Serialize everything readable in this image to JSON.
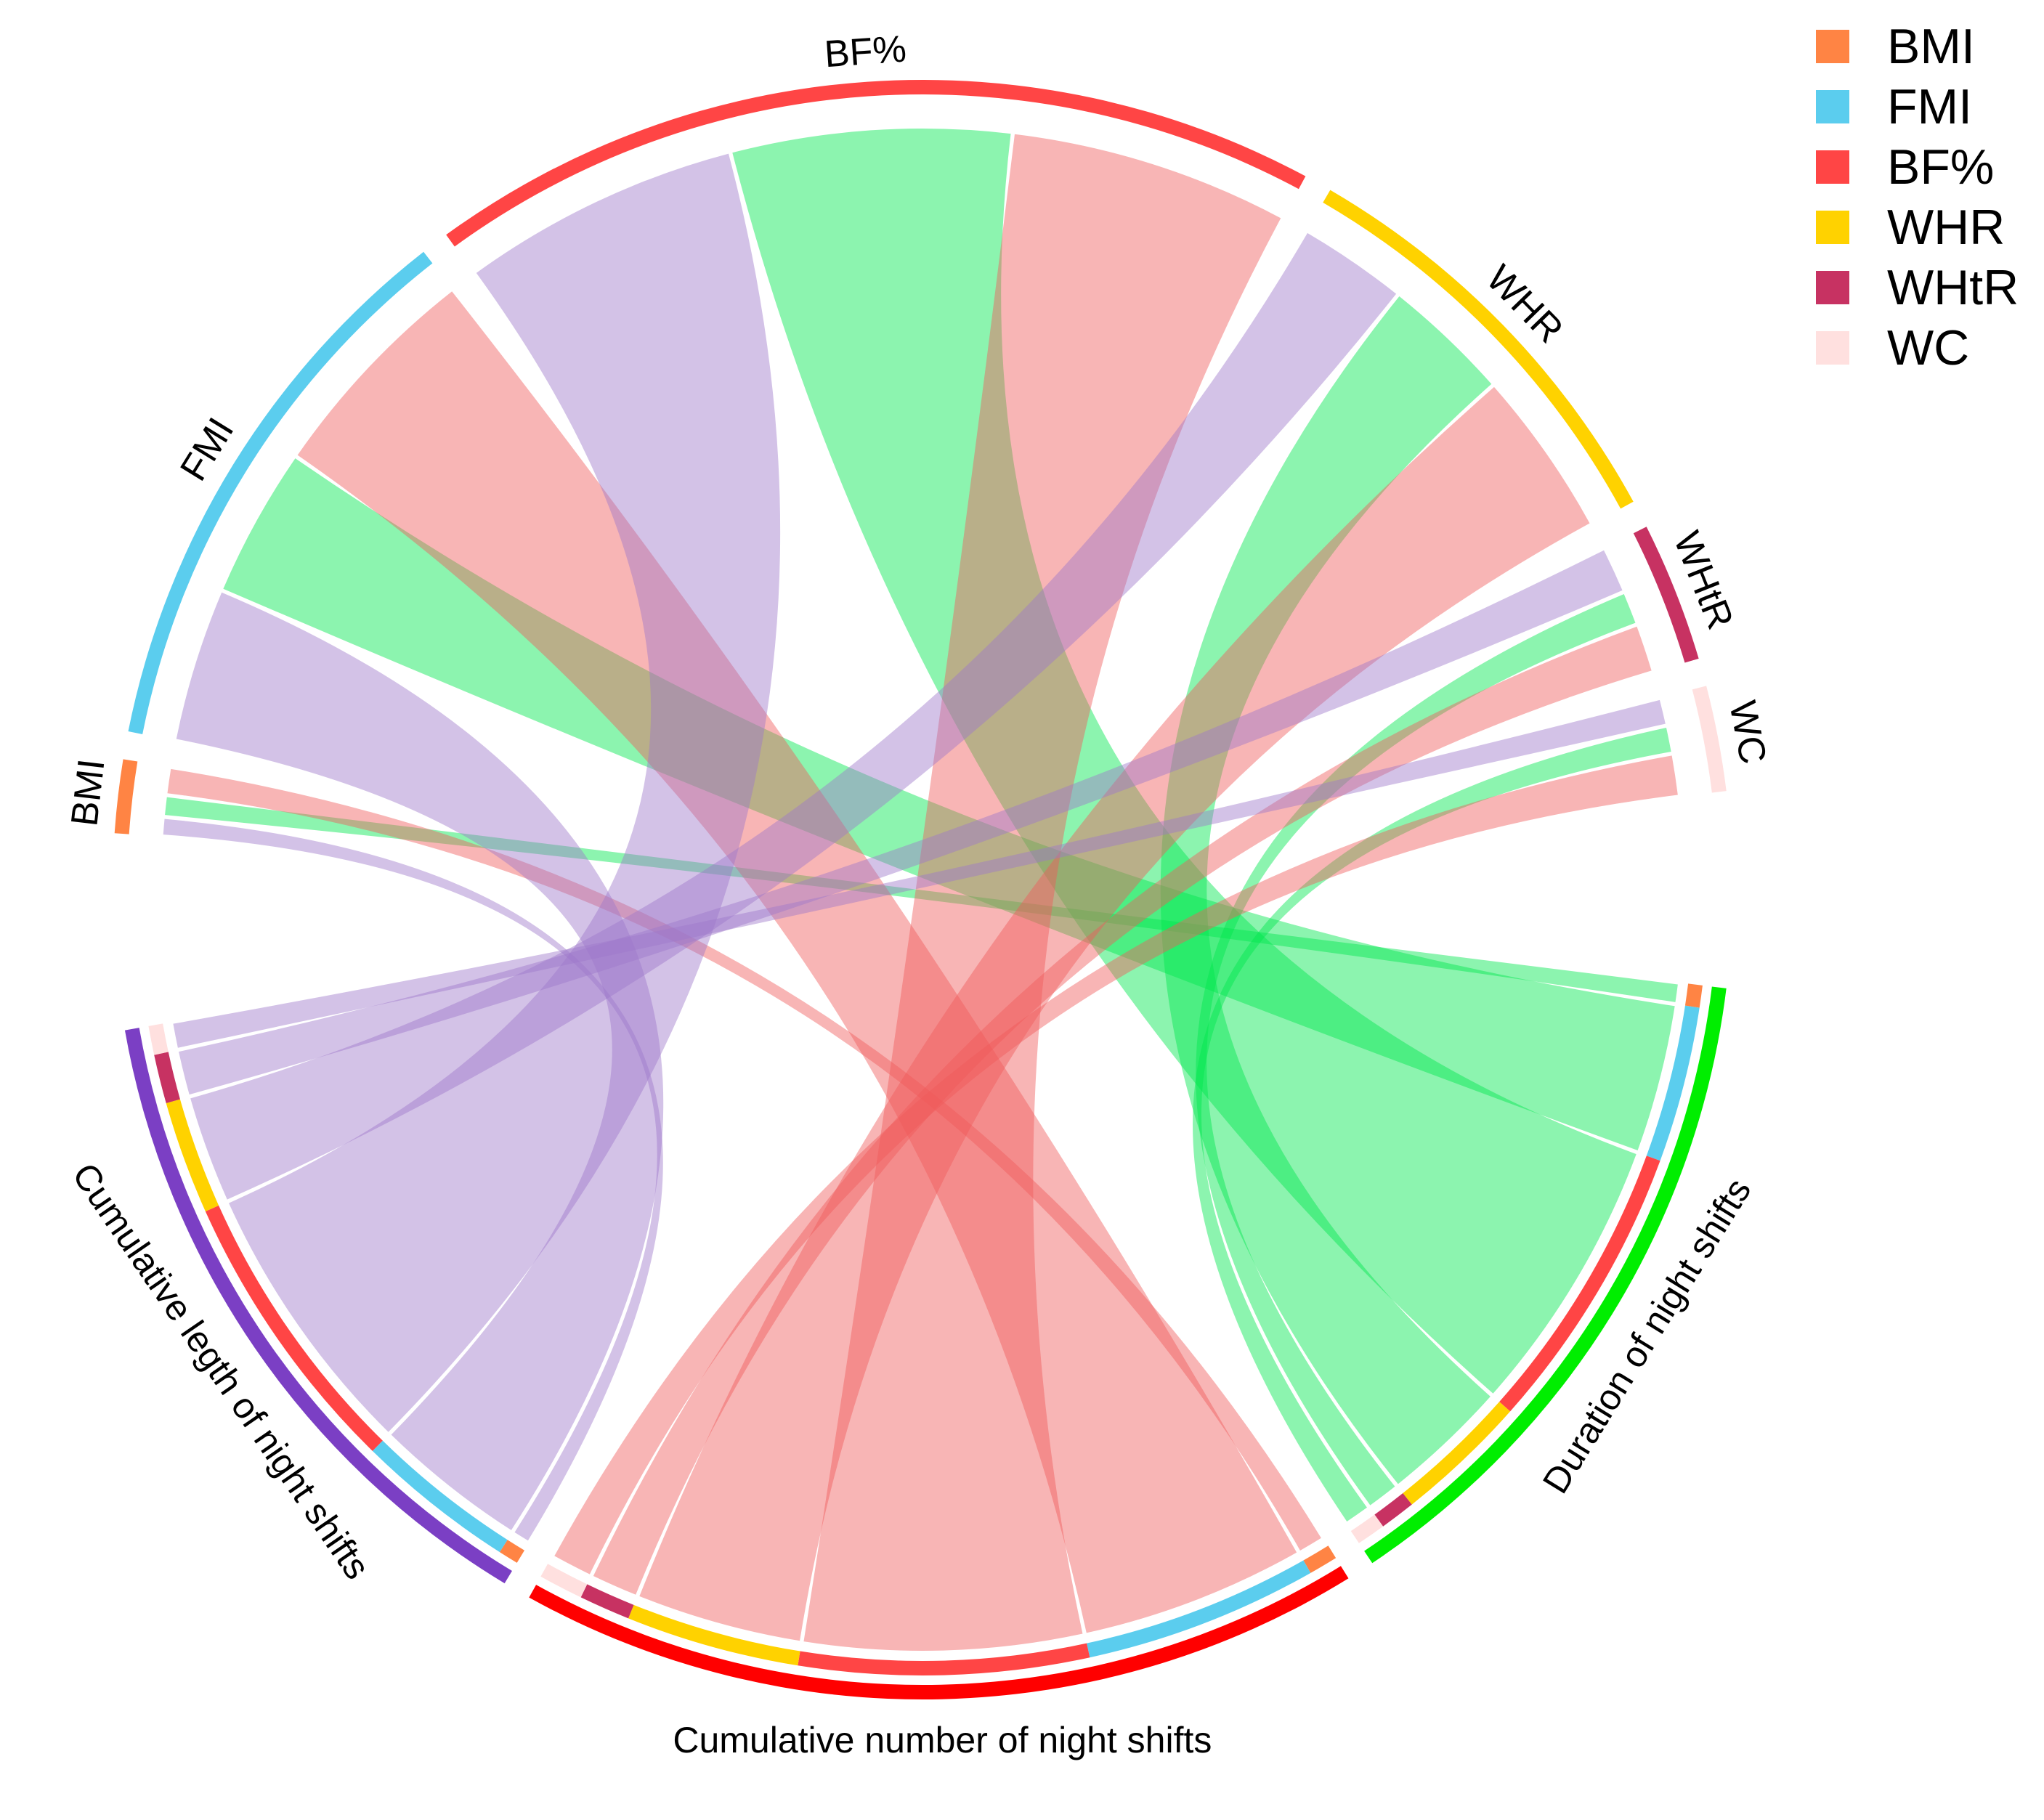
{
  "chart_data": {
    "type": "chord",
    "title": "",
    "legend_position": "top-right",
    "targets": [
      {
        "key": "BMI",
        "name": "BMI",
        "color": "#FF8444"
      },
      {
        "key": "FMI",
        "name": "FMI",
        "color": "#5BCDEE"
      },
      {
        "key": "BF",
        "name": "BF%",
        "color": "#FF4545"
      },
      {
        "key": "WHR",
        "name": "WHR",
        "color": "#FFD200"
      },
      {
        "key": "WHtR",
        "name": "WHtR",
        "color": "#C73262"
      },
      {
        "key": "WC",
        "name": "WC",
        "color": "#FFE0DF"
      }
    ],
    "sources": [
      {
        "key": "DUR",
        "name": "Duration of night shifts",
        "color": "#00EE00",
        "ribbon_color": "#00E64D"
      },
      {
        "key": "NUM",
        "name": "Cumulative number of night shifts",
        "color": "#FF0000",
        "ribbon_color": "#F05A5A"
      },
      {
        "key": "LEN",
        "name": "Cumulative legth of night shifts",
        "color": "#7B3FC4",
        "ribbon_color": "#9E78C9"
      }
    ],
    "flows": [
      {
        "source": "DUR",
        "target": "BMI",
        "value": 1
      },
      {
        "source": "DUR",
        "target": "FMI",
        "value": 7
      },
      {
        "source": "DUR",
        "target": "BF",
        "value": 13
      },
      {
        "source": "DUR",
        "target": "WHR",
        "value": 6
      },
      {
        "source": "DUR",
        "target": "WHtR",
        "value": 1.6
      },
      {
        "source": "DUR",
        "target": "WC",
        "value": 1.3
      },
      {
        "source": "NUM",
        "target": "BMI",
        "value": 1.3
      },
      {
        "source": "NUM",
        "target": "FMI",
        "value": 10.5
      },
      {
        "source": "NUM",
        "target": "BF",
        "value": 13
      },
      {
        "source": "NUM",
        "target": "WHR",
        "value": 7.8
      },
      {
        "source": "NUM",
        "target": "WHtR",
        "value": 2.3
      },
      {
        "source": "NUM",
        "target": "WC",
        "value": 2
      },
      {
        "source": "LEN",
        "target": "BMI",
        "value": 0.9
      },
      {
        "source": "LEN",
        "target": "FMI",
        "value": 7.2
      },
      {
        "source": "LEN",
        "target": "BF",
        "value": 13
      },
      {
        "source": "LEN",
        "target": "WHR",
        "value": 5.1
      },
      {
        "source": "LEN",
        "target": "WHtR",
        "value": 2.2
      },
      {
        "source": "LEN",
        "target": "WC",
        "value": 1.3
      }
    ]
  }
}
